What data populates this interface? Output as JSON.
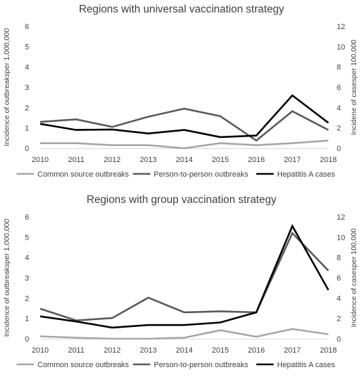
{
  "chart_data": [
    {
      "type": "line",
      "title": "Regions with universal vaccination strategy",
      "x": [
        "2010",
        "2011",
        "2012",
        "2013",
        "2014",
        "2015",
        "2016",
        "2017",
        "2018"
      ],
      "ylabel_left": "Incidence of outbreaksper 1,000,000",
      "ylabel_right": "Incidene of casesper 100,000",
      "ylim_left": [
        0,
        6
      ],
      "ylim_right": [
        0,
        12
      ],
      "yticks_left": [
        "0",
        "1",
        "2",
        "3",
        "4",
        "5",
        "6"
      ],
      "yticks_right": [
        "0",
        "2",
        "4",
        "6",
        "8",
        "10",
        "12"
      ],
      "grid": false,
      "legend_position": "bottom",
      "series": [
        {
          "name": "Common source outbreaks",
          "axis": "left",
          "color": "#a6a6a6",
          "values": [
            0.25,
            0.25,
            0.15,
            0.15,
            0.0,
            0.25,
            0.15,
            0.25,
            0.38
          ]
        },
        {
          "name": "Person-to-person outbreaks",
          "axis": "left",
          "color": "#595959",
          "values": [
            1.3,
            1.42,
            1.05,
            1.55,
            1.95,
            1.58,
            0.38,
            1.82,
            0.9
          ]
        },
        {
          "name": "Hepatitis A cases",
          "axis": "right",
          "color": "#000000",
          "values": [
            2.4,
            1.8,
            1.85,
            1.45,
            1.8,
            1.1,
            1.25,
            5.2,
            2.5
          ]
        }
      ]
    },
    {
      "type": "line",
      "title": "Regions with group vaccination strategy",
      "x": [
        "2010",
        "2011",
        "2012",
        "2013",
        "2014",
        "2015",
        "2016",
        "2017",
        "2018"
      ],
      "ylabel_left": "Incidence of outbreaksper 1,000,000",
      "ylabel_right": "Incidence of casesper 100,000",
      "ylim_left": [
        0,
        6
      ],
      "ylim_right": [
        0,
        12
      ],
      "yticks_left": [
        "0",
        "1",
        "2",
        "3",
        "4",
        "5",
        "6"
      ],
      "yticks_right": [
        "0",
        "2",
        "4",
        "6",
        "8",
        "10",
        "12"
      ],
      "grid": false,
      "legend_position": "bottom",
      "series": [
        {
          "name": "Common source outbreaks",
          "axis": "left",
          "color": "#a6a6a6",
          "values": [
            0.12,
            0.05,
            0.0,
            0.0,
            0.05,
            0.42,
            0.1,
            0.48,
            0.22
          ]
        },
        {
          "name": "Person-to-person outbreaks",
          "axis": "left",
          "color": "#595959",
          "values": [
            1.48,
            0.9,
            1.02,
            2.02,
            1.3,
            1.35,
            1.3,
            5.2,
            3.35
          ]
        },
        {
          "name": "Hepatitis A cases",
          "axis": "right",
          "color": "#000000",
          "values": [
            2.2,
            1.7,
            1.1,
            1.35,
            1.35,
            1.6,
            2.6,
            11.1,
            4.8
          ]
        }
      ]
    }
  ]
}
